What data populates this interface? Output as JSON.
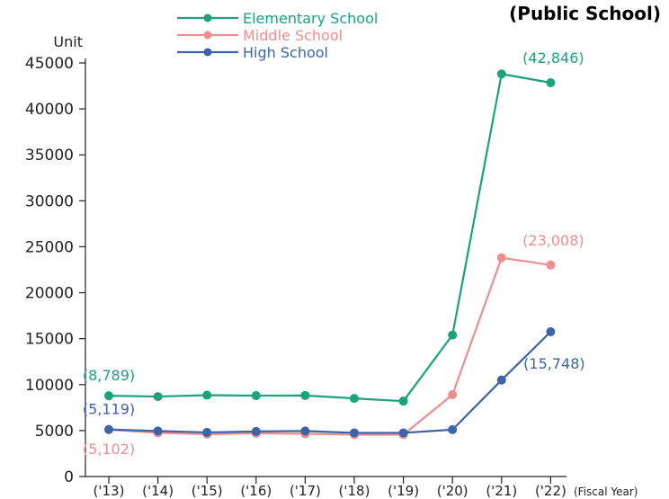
{
  "chart_data": {
    "type": "line",
    "title": "",
    "note": "(Public School)",
    "ylabel": "Unit",
    "xlabel": "(Fiscal Year)",
    "categories": [
      "('13)",
      "('14)",
      "('15)",
      "('16)",
      "('17)",
      "('18)",
      "('19)",
      "('20)",
      "('21)",
      "('22)"
    ],
    "ylim": [
      0,
      45000
    ],
    "yticks": [
      "0",
      "5000",
      "10000",
      "15000",
      "20000",
      "25000",
      "30000",
      "35000",
      "40000",
      "45000"
    ],
    "grid": false,
    "legend_position": "top",
    "series": [
      {
        "name": "Elementary School",
        "color": "#1ba27b",
        "values": [
          8789,
          8700,
          8850,
          8800,
          8820,
          8500,
          8200,
          15400,
          43800,
          42846
        ],
        "callouts": [
          {
            "index": 0,
            "text": "(8,789)",
            "placement": "above"
          },
          {
            "index": 9,
            "text": "(42,846)",
            "placement": "above"
          }
        ]
      },
      {
        "name": "Middle School",
        "color": "#ee8e90",
        "values": [
          5102,
          4750,
          4600,
          4700,
          4650,
          4550,
          4550,
          8900,
          23800,
          23008
        ],
        "callouts": [
          {
            "index": 0,
            "text": "(5,102)",
            "placement": "below"
          },
          {
            "index": 9,
            "text": "(23,008)",
            "placement": "above"
          }
        ]
      },
      {
        "name": "High School",
        "color": "#3d64a8",
        "values": [
          5119,
          4950,
          4800,
          4900,
          4950,
          4750,
          4750,
          5100,
          10500,
          15748
        ],
        "callouts": [
          {
            "index": 0,
            "text": "(5,119)",
            "placement": "above"
          },
          {
            "index": 9,
            "text": "(15,748)",
            "placement": "right"
          }
        ]
      }
    ]
  }
}
